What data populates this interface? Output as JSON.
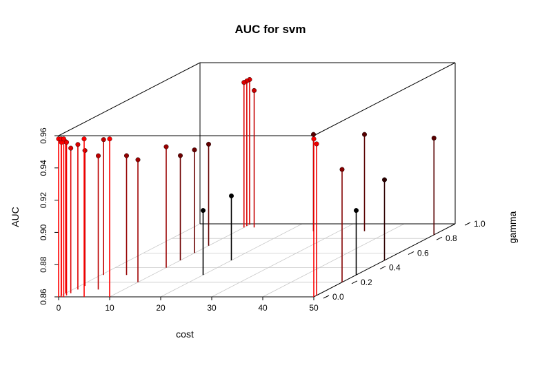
{
  "chart_data": {
    "type": "scatter",
    "subtype": "3d-scatter-with-drop-lines",
    "title": "AUC for svm",
    "xlabel": "cost",
    "ylabel": "gamma",
    "zlabel": "AUC",
    "xlim": [
      0,
      50
    ],
    "ylim": [
      0,
      1
    ],
    "zlim": [
      0.86,
      0.96
    ],
    "x_ticks": [
      "0",
      "10",
      "20",
      "30",
      "40",
      "50"
    ],
    "y_ticks": [
      "0.0",
      "0.2",
      "0.4",
      "0.6",
      "0.8",
      "1.0"
    ],
    "z_ticks": [
      "0.86",
      "0.88",
      "0.90",
      "0.92",
      "0.94",
      "0.96"
    ],
    "grid": true,
    "color_scale": {
      "low": "#000000",
      "high": "#ff0000"
    },
    "points": [
      {
        "x": 0,
        "y": 0.0,
        "z": 0.958
      },
      {
        "x": 0.5,
        "y": 0.0,
        "z": 0.958
      },
      {
        "x": 1,
        "y": 0.0,
        "z": 0.958
      },
      {
        "x": 5,
        "y": 0.0,
        "z": 0.958
      },
      {
        "x": 10,
        "y": 0.0,
        "z": 0.958
      },
      {
        "x": 50,
        "y": 0.0,
        "z": 0.958
      },
      {
        "x": 0,
        "y": 0.02,
        "z": 0.955
      },
      {
        "x": 1,
        "y": 0.02,
        "z": 0.955
      },
      {
        "x": 50,
        "y": 0.02,
        "z": 0.954
      },
      {
        "x": 0,
        "y": 0.05,
        "z": 0.954
      },
      {
        "x": 1,
        "y": 0.05,
        "z": 0.95
      },
      {
        "x": 1,
        "y": 0.1,
        "z": 0.95
      },
      {
        "x": 1,
        "y": 0.15,
        "z": 0.944
      },
      {
        "x": 0.5,
        "y": 0.3,
        "z": 0.944
      },
      {
        "x": 5,
        "y": 0.1,
        "z": 0.943
      },
      {
        "x": 5,
        "y": 0.3,
        "z": 0.934
      },
      {
        "x": 10,
        "y": 0.2,
        "z": 0.936
      },
      {
        "x": 10,
        "y": 0.4,
        "z": 0.935
      },
      {
        "x": 10,
        "y": 0.5,
        "z": 0.925
      },
      {
        "x": 10,
        "y": 0.6,
        "z": 0.924
      },
      {
        "x": 10,
        "y": 0.7,
        "z": 0.923
      },
      {
        "x": 50,
        "y": 0.2,
        "z": 0.93
      },
      {
        "x": 50,
        "y": 0.5,
        "z": 0.91
      },
      {
        "x": 10,
        "y": 0.95,
        "z": 0.95
      },
      {
        "x": 10,
        "y": 0.97,
        "z": 0.95
      },
      {
        "x": 10,
        "y": 0.99,
        "z": 0.95
      },
      {
        "x": 12,
        "y": 0.95,
        "z": 0.945
      },
      {
        "x": 25,
        "y": 0.9,
        "z": 0.92
      },
      {
        "x": 35,
        "y": 0.9,
        "z": 0.92
      },
      {
        "x": 50,
        "y": 0.85,
        "z": 0.92
      },
      {
        "x": 20,
        "y": 0.3,
        "z": 0.9
      },
      {
        "x": 20,
        "y": 0.5,
        "z": 0.9
      },
      {
        "x": 50,
        "y": 0.3,
        "z": 0.9
      }
    ]
  }
}
